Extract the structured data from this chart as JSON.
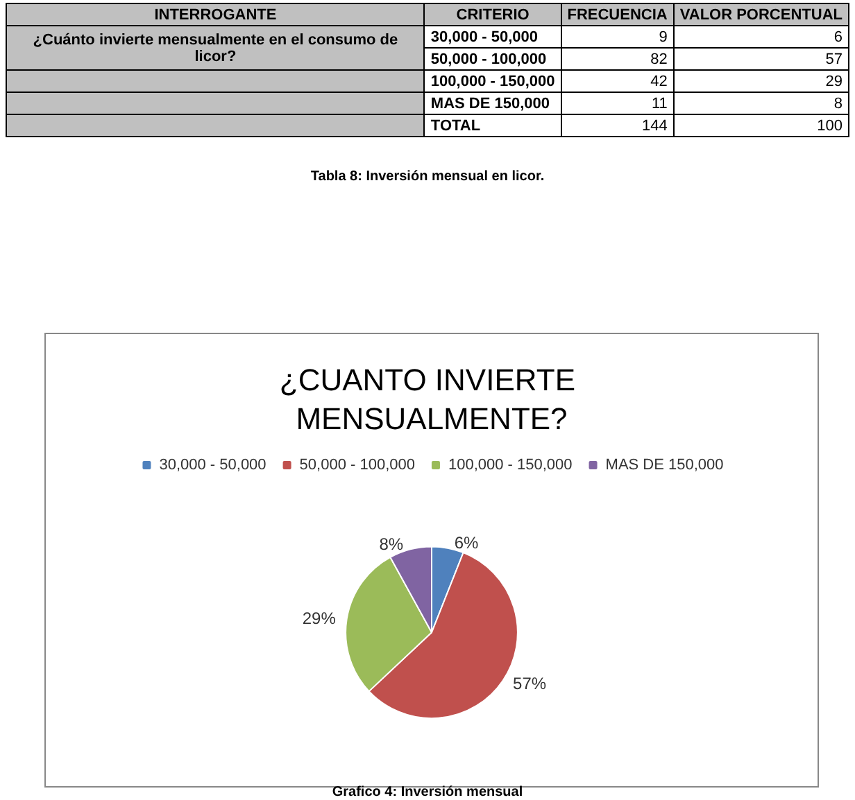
{
  "chart_data": {
    "type": "pie",
    "title": "¿CUANTO INVIERTE MENSUALMENTE?",
    "categories": [
      "30,000 - 50,000",
      "50,000 - 100,000",
      "100,000 - 150,000",
      "MAS DE 150,000"
    ],
    "values": [
      6,
      57,
      29,
      8
    ],
    "value_labels": [
      "6%",
      "57%",
      "29%",
      "8%"
    ],
    "colors": [
      "#4f81bd",
      "#c0504d",
      "#9bbb59",
      "#8064a2"
    ],
    "legend": "top",
    "annotations": [
      "INTERROGANTE",
      "CRITERIO",
      "FRECUENCIA",
      "VALOR PORCENTUAL",
      "¿Cuánto invierte mensualmente en el consumo de licor?",
      "9",
      "82",
      "42",
      "11",
      "6",
      "57",
      "29",
      "8",
      "TOTAL",
      "144",
      "100",
      "Tabla 8: Inversión mensual en licor.",
      "Grafico 4: Inversión mensual"
    ]
  }
}
